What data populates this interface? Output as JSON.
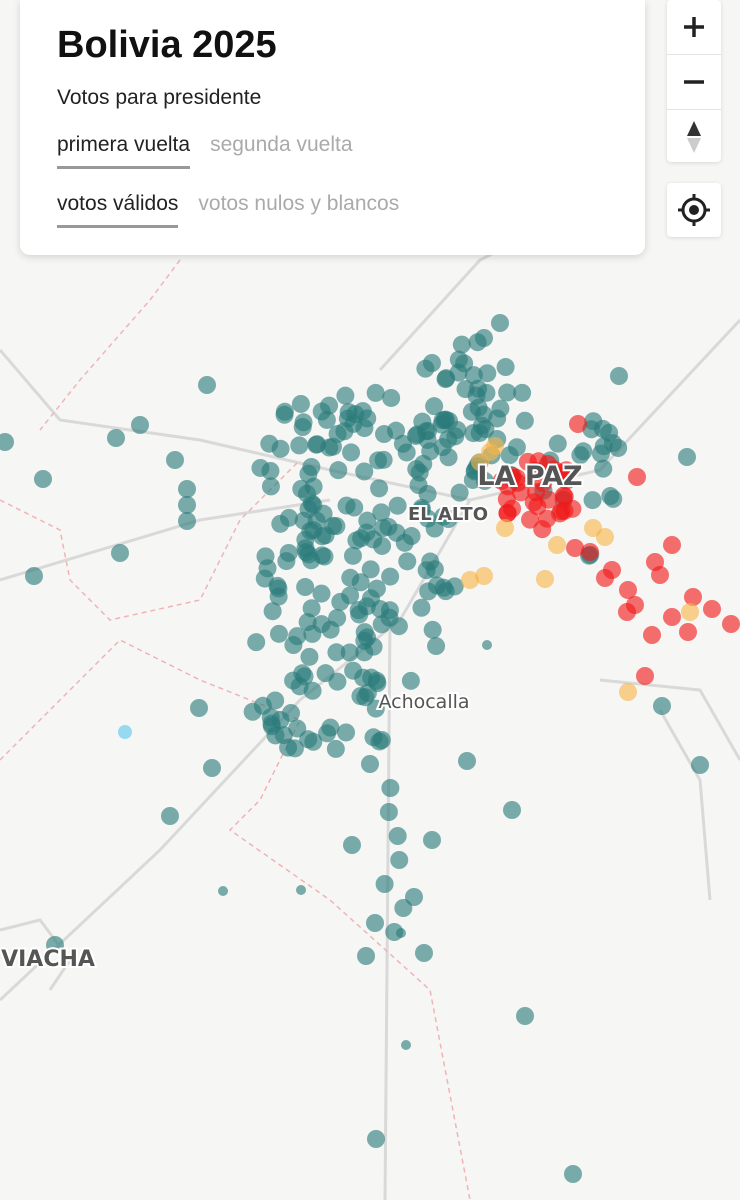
{
  "header": {
    "title": "Bolivia 2025",
    "subtitle": "Votos para presidente"
  },
  "tabs": {
    "round": [
      {
        "label": "primera vuelta",
        "active": true
      },
      {
        "label": "segunda vuelta",
        "active": false
      }
    ],
    "measure": [
      {
        "label": "votos válidos",
        "active": true
      },
      {
        "label": "votos nulos y blancos",
        "active": false
      }
    ]
  },
  "map": {
    "labels": [
      "LA PAZ",
      "EL ALTO",
      "Achocalla",
      "VIACHA"
    ]
  }
}
